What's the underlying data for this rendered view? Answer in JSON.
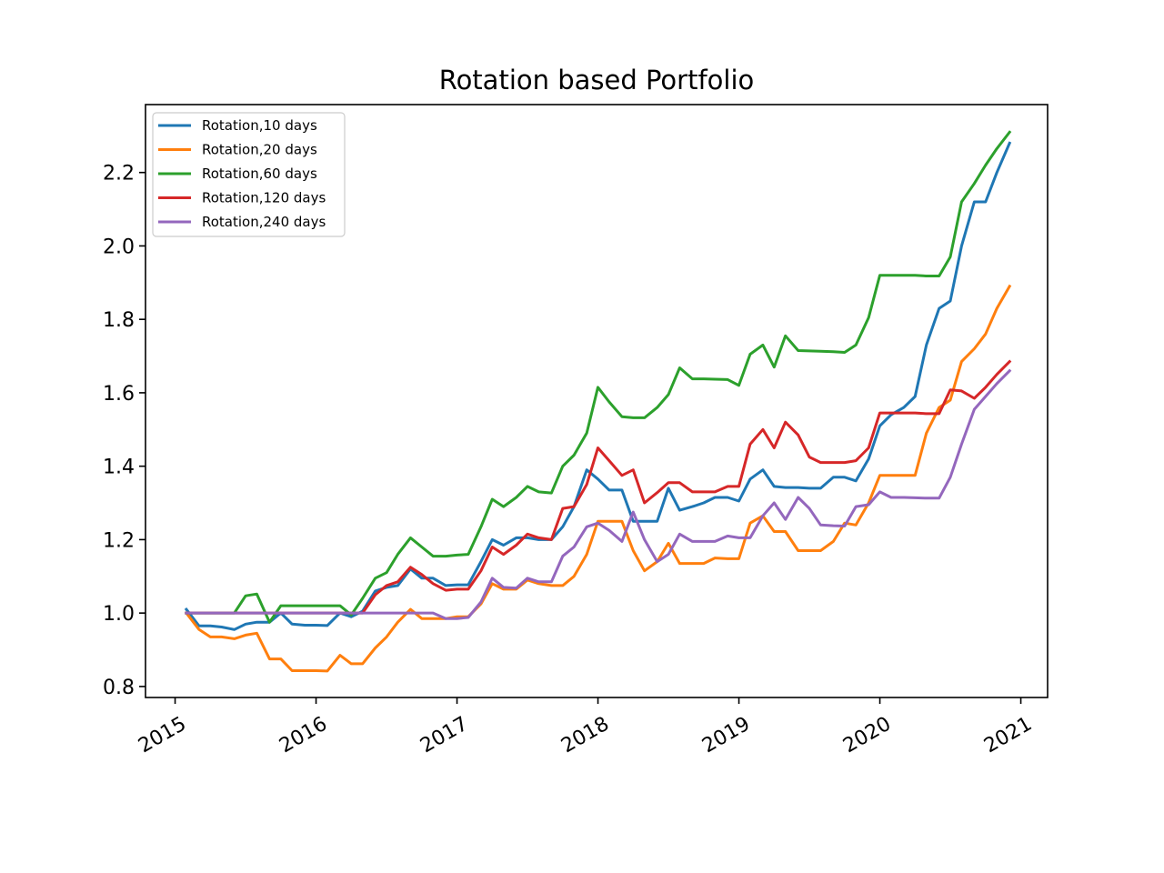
{
  "chart_data": {
    "type": "line",
    "title": "Rotation based Portfolio",
    "xlabel": "",
    "ylabel": "",
    "xlim": [
      2014.79,
      2021.19
    ],
    "ylim": [
      0.77,
      2.385
    ],
    "x_ticks": [
      2015,
      2016,
      2017,
      2018,
      2019,
      2020,
      2021
    ],
    "x_tick_labels": [
      "2015",
      "2016",
      "2017",
      "2018",
      "2019",
      "2020",
      "2021"
    ],
    "y_ticks": [
      0.8,
      1.0,
      1.2,
      1.4,
      1.6,
      1.8,
      2.0,
      2.2
    ],
    "y_tick_labels": [
      "0.8",
      "1.0",
      "1.2",
      "1.4",
      "1.6",
      "1.8",
      "2.0",
      "2.2"
    ],
    "grid": false,
    "legend_position": "top-left",
    "series": [
      {
        "name": "Rotation,10 days",
        "color": "#1f77b4",
        "x": [
          2015.08,
          2015.17,
          2015.25,
          2015.33,
          2015.42,
          2015.5,
          2015.58,
          2015.67,
          2015.75,
          2015.83,
          2015.92,
          2016.0,
          2016.08,
          2016.17,
          2016.25,
          2016.33,
          2016.42,
          2016.5,
          2016.58,
          2016.67,
          2016.75,
          2016.83,
          2016.92,
          2017.0,
          2017.08,
          2017.17,
          2017.25,
          2017.33,
          2017.42,
          2017.5,
          2017.58,
          2017.67,
          2017.75,
          2017.83,
          2017.92,
          2018.0,
          2018.08,
          2018.17,
          2018.25,
          2018.33,
          2018.42,
          2018.5,
          2018.58,
          2018.67,
          2018.75,
          2018.83,
          2018.92,
          2019.0,
          2019.08,
          2019.17,
          2019.25,
          2019.33,
          2019.42,
          2019.5,
          2019.58,
          2019.67,
          2019.75,
          2019.83,
          2019.92,
          2020.0,
          2020.08,
          2020.17,
          2020.25,
          2020.33,
          2020.42,
          2020.5,
          2020.58,
          2020.67,
          2020.75,
          2020.83,
          2020.92
        ],
        "y": [
          1.01,
          0.965,
          0.965,
          0.962,
          0.955,
          0.97,
          0.975,
          0.975,
          1.0,
          0.97,
          0.967,
          0.967,
          0.966,
          1.0,
          0.99,
          1.005,
          1.06,
          1.07,
          1.075,
          1.12,
          1.095,
          1.095,
          1.075,
          1.077,
          1.077,
          1.14,
          1.2,
          1.185,
          1.205,
          1.205,
          1.2,
          1.2,
          1.235,
          1.29,
          1.39,
          1.365,
          1.335,
          1.335,
          1.25,
          1.25,
          1.25,
          1.34,
          1.28,
          1.29,
          1.3,
          1.315,
          1.315,
          1.305,
          1.365,
          1.39,
          1.345,
          1.342,
          1.342,
          1.34,
          1.34,
          1.37,
          1.37,
          1.36,
          1.42,
          1.51,
          1.54,
          1.56,
          1.59,
          1.73,
          1.83,
          1.85,
          2.0,
          2.12,
          2.12,
          2.2,
          2.28
        ]
      },
      {
        "name": "Rotation,20 days",
        "color": "#ff7f0e",
        "x": [
          2015.08,
          2015.17,
          2015.25,
          2015.33,
          2015.42,
          2015.5,
          2015.58,
          2015.67,
          2015.75,
          2015.83,
          2015.92,
          2016.0,
          2016.08,
          2016.17,
          2016.25,
          2016.33,
          2016.42,
          2016.5,
          2016.58,
          2016.67,
          2016.75,
          2016.83,
          2016.92,
          2017.0,
          2017.08,
          2017.17,
          2017.25,
          2017.33,
          2017.42,
          2017.5,
          2017.58,
          2017.67,
          2017.75,
          2017.83,
          2017.92,
          2018.0,
          2018.08,
          2018.17,
          2018.25,
          2018.33,
          2018.42,
          2018.5,
          2018.58,
          2018.67,
          2018.75,
          2018.83,
          2018.92,
          2019.0,
          2019.08,
          2019.17,
          2019.25,
          2019.33,
          2019.42,
          2019.5,
          2019.58,
          2019.67,
          2019.75,
          2019.83,
          2019.92,
          2020.0,
          2020.08,
          2020.17,
          2020.25,
          2020.33,
          2020.42,
          2020.5,
          2020.58,
          2020.67,
          2020.75,
          2020.83,
          2020.92
        ],
        "y": [
          1.0,
          0.955,
          0.935,
          0.935,
          0.93,
          0.94,
          0.945,
          0.875,
          0.875,
          0.843,
          0.843,
          0.843,
          0.842,
          0.885,
          0.862,
          0.862,
          0.905,
          0.935,
          0.975,
          1.01,
          0.985,
          0.985,
          0.985,
          0.99,
          0.99,
          1.025,
          1.08,
          1.065,
          1.065,
          1.09,
          1.08,
          1.075,
          1.075,
          1.1,
          1.16,
          1.25,
          1.25,
          1.25,
          1.17,
          1.115,
          1.14,
          1.19,
          1.135,
          1.135,
          1.135,
          1.15,
          1.148,
          1.148,
          1.245,
          1.265,
          1.222,
          1.222,
          1.17,
          1.17,
          1.17,
          1.195,
          1.245,
          1.24,
          1.3,
          1.375,
          1.375,
          1.375,
          1.375,
          1.49,
          1.56,
          1.58,
          1.685,
          1.72,
          1.76,
          1.83,
          1.89
        ]
      },
      {
        "name": "Rotation,60 days",
        "color": "#2ca02c",
        "x": [
          2015.08,
          2015.17,
          2015.25,
          2015.33,
          2015.42,
          2015.5,
          2015.58,
          2015.67,
          2015.75,
          2015.83,
          2015.92,
          2016.0,
          2016.08,
          2016.17,
          2016.25,
          2016.33,
          2016.42,
          2016.5,
          2016.58,
          2016.67,
          2016.75,
          2016.83,
          2016.92,
          2017.0,
          2017.08,
          2017.17,
          2017.25,
          2017.33,
          2017.42,
          2017.5,
          2017.58,
          2017.67,
          2017.75,
          2017.83,
          2017.92,
          2018.0,
          2018.08,
          2018.17,
          2018.25,
          2018.33,
          2018.42,
          2018.5,
          2018.58,
          2018.67,
          2018.75,
          2018.83,
          2018.92,
          2019.0,
          2019.08,
          2019.17,
          2019.25,
          2019.33,
          2019.42,
          2019.5,
          2019.58,
          2019.67,
          2019.75,
          2019.83,
          2019.92,
          2020.0,
          2020.08,
          2020.17,
          2020.25,
          2020.33,
          2020.42,
          2020.5,
          2020.58,
          2020.67,
          2020.75,
          2020.83,
          2020.92
        ],
        "y": [
          1.0,
          1.0,
          1.0,
          1.0,
          1.0,
          1.047,
          1.052,
          0.975,
          1.02,
          1.02,
          1.02,
          1.02,
          1.02,
          1.02,
          0.995,
          1.04,
          1.095,
          1.11,
          1.16,
          1.205,
          1.18,
          1.155,
          1.155,
          1.158,
          1.16,
          1.235,
          1.31,
          1.29,
          1.315,
          1.345,
          1.33,
          1.327,
          1.4,
          1.43,
          1.49,
          1.615,
          1.575,
          1.535,
          1.532,
          1.532,
          1.56,
          1.595,
          1.668,
          1.638,
          1.638,
          1.637,
          1.636,
          1.62,
          1.705,
          1.73,
          1.67,
          1.755,
          1.715,
          1.714,
          1.713,
          1.712,
          1.71,
          1.73,
          1.805,
          1.92,
          1.92,
          1.92,
          1.92,
          1.918,
          1.918,
          1.97,
          2.12,
          2.17,
          2.22,
          2.265,
          2.31
        ]
      },
      {
        "name": "Rotation,120 days",
        "color": "#d62728",
        "x": [
          2015.08,
          2015.17,
          2015.25,
          2015.33,
          2015.42,
          2015.5,
          2015.58,
          2015.67,
          2015.75,
          2015.83,
          2015.92,
          2016.0,
          2016.08,
          2016.17,
          2016.25,
          2016.33,
          2016.42,
          2016.5,
          2016.58,
          2016.67,
          2016.75,
          2016.83,
          2016.92,
          2017.0,
          2017.08,
          2017.17,
          2017.25,
          2017.33,
          2017.42,
          2017.5,
          2017.58,
          2017.67,
          2017.75,
          2017.83,
          2017.92,
          2018.0,
          2018.08,
          2018.17,
          2018.25,
          2018.33,
          2018.42,
          2018.5,
          2018.58,
          2018.67,
          2018.75,
          2018.83,
          2018.92,
          2019.0,
          2019.08,
          2019.17,
          2019.25,
          2019.33,
          2019.42,
          2019.5,
          2019.58,
          2019.67,
          2019.75,
          2019.83,
          2019.92,
          2020.0,
          2020.08,
          2020.17,
          2020.25,
          2020.33,
          2020.42,
          2020.5,
          2020.58,
          2020.67,
          2020.75,
          2020.83,
          2020.92
        ],
        "y": [
          1.0,
          1.0,
          1.0,
          1.0,
          1.0,
          1.0,
          1.0,
          1.0,
          1.0,
          1.0,
          1.0,
          1.0,
          1.0,
          1.0,
          1.0,
          1.0,
          1.05,
          1.075,
          1.085,
          1.125,
          1.105,
          1.08,
          1.062,
          1.065,
          1.065,
          1.115,
          1.18,
          1.16,
          1.185,
          1.215,
          1.205,
          1.2,
          1.285,
          1.29,
          1.35,
          1.45,
          1.415,
          1.375,
          1.39,
          1.3,
          1.328,
          1.355,
          1.355,
          1.33,
          1.33,
          1.33,
          1.345,
          1.345,
          1.46,
          1.5,
          1.45,
          1.52,
          1.485,
          1.425,
          1.41,
          1.41,
          1.41,
          1.415,
          1.45,
          1.545,
          1.545,
          1.545,
          1.545,
          1.543,
          1.543,
          1.608,
          1.605,
          1.585,
          1.615,
          1.65,
          1.685
        ]
      },
      {
        "name": "Rotation,240 days",
        "color": "#9467bd",
        "x": [
          2015.08,
          2015.17,
          2015.25,
          2015.33,
          2015.42,
          2015.5,
          2015.58,
          2015.67,
          2015.75,
          2015.83,
          2015.92,
          2016.0,
          2016.08,
          2016.17,
          2016.25,
          2016.33,
          2016.42,
          2016.5,
          2016.58,
          2016.67,
          2016.75,
          2016.83,
          2016.92,
          2017.0,
          2017.08,
          2017.17,
          2017.25,
          2017.33,
          2017.42,
          2017.5,
          2017.58,
          2017.67,
          2017.75,
          2017.83,
          2017.92,
          2018.0,
          2018.08,
          2018.17,
          2018.25,
          2018.33,
          2018.42,
          2018.5,
          2018.58,
          2018.67,
          2018.75,
          2018.83,
          2018.92,
          2019.0,
          2019.08,
          2019.17,
          2019.25,
          2019.33,
          2019.42,
          2019.5,
          2019.58,
          2019.67,
          2019.75,
          2019.83,
          2019.92,
          2020.0,
          2020.08,
          2020.17,
          2020.25,
          2020.33,
          2020.42,
          2020.5,
          2020.58,
          2020.67,
          2020.75,
          2020.83,
          2020.92
        ],
        "y": [
          1.0,
          1.0,
          1.0,
          1.0,
          1.0,
          1.0,
          1.0,
          1.0,
          1.0,
          1.0,
          1.0,
          1.0,
          1.0,
          1.0,
          1.0,
          1.0,
          1.0,
          1.0,
          1.0,
          1.0,
          1.0,
          1.0,
          0.985,
          0.985,
          0.988,
          1.03,
          1.095,
          1.07,
          1.068,
          1.095,
          1.085,
          1.085,
          1.155,
          1.18,
          1.235,
          1.245,
          1.225,
          1.195,
          1.275,
          1.2,
          1.14,
          1.16,
          1.215,
          1.195,
          1.195,
          1.195,
          1.21,
          1.205,
          1.205,
          1.265,
          1.3,
          1.255,
          1.315,
          1.285,
          1.24,
          1.238,
          1.237,
          1.29,
          1.295,
          1.33,
          1.315,
          1.315,
          1.314,
          1.313,
          1.313,
          1.37,
          1.46,
          1.555,
          1.59,
          1.625,
          1.66
        ]
      }
    ]
  }
}
